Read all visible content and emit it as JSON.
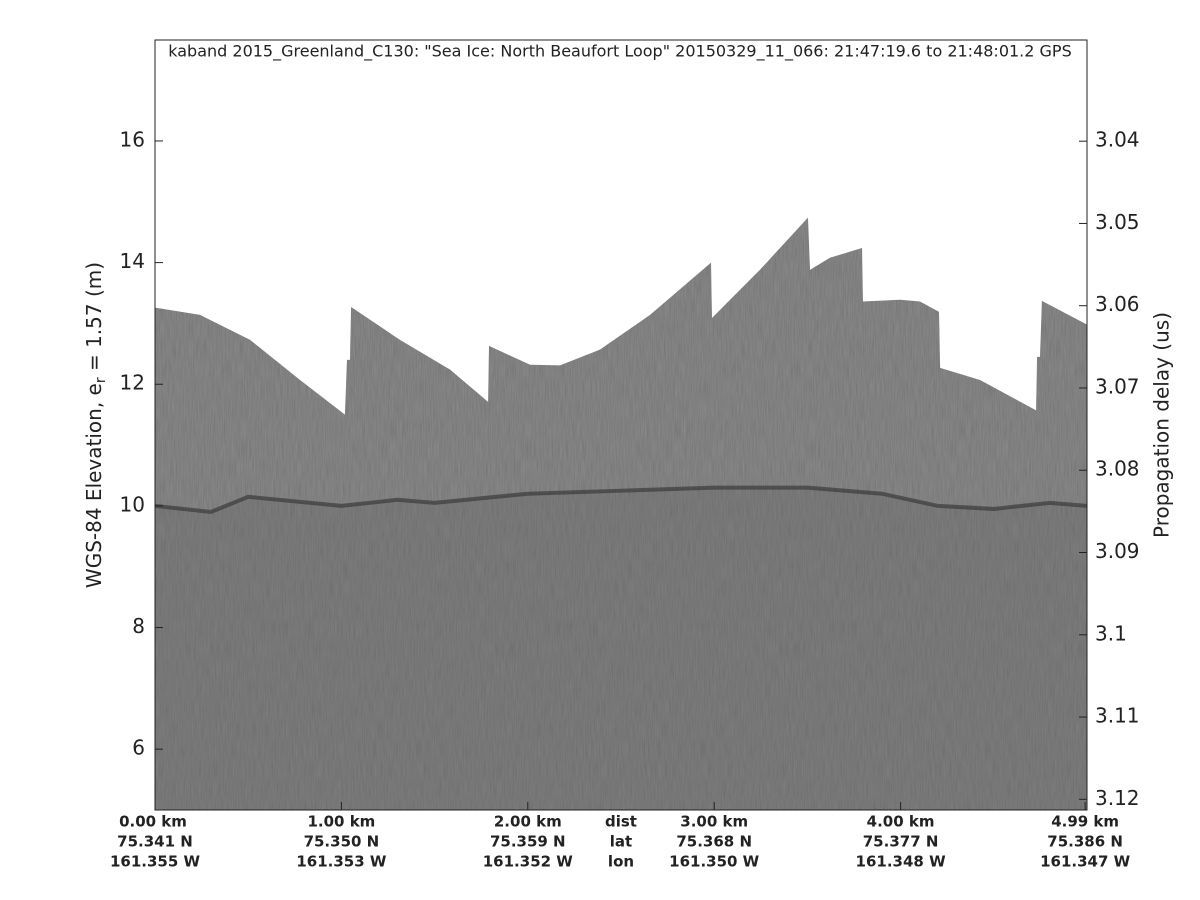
{
  "chart_data": {
    "type": "echogram",
    "title": "kaband 2015_Greenland_C130: \"Sea Ice: North Beaufort Loop\"  20150329_11_066: 21:47:19.6 to 21:48:01.2 GPS",
    "ylabel": [
      "WGS-84 Elevation, e",
      "r",
      " = 1.57 (m)"
    ],
    "y2label": "Propagation delay (us)",
    "xlim": [
      0,
      5.0
    ],
    "xticks": [
      {
        "value": 0,
        "label": "0.00 km"
      },
      {
        "value": 1.0,
        "label": "1.00 km"
      },
      {
        "value": 2.0,
        "label": "2.00 km"
      },
      {
        "value": 3.0,
        "label": "3.00 km"
      },
      {
        "value": 4.0,
        "label": "4.00 km"
      },
      {
        "value": 4.99,
        "label": "4.99 km"
      }
    ],
    "xtick_lat": [
      "75.341 N",
      "75.350 N",
      "75.359 N",
      "75.368 N",
      "75.377 N",
      "75.386 N"
    ],
    "xtick_lon": [
      "161.355 W",
      "161.353 W",
      "161.352 W",
      "161.350 W",
      "161.348 W",
      "161.347 W"
    ],
    "row_labels": [
      "dist",
      "lat",
      "lon"
    ],
    "ylim": [
      5.0,
      17.66
    ],
    "yticks": [
      6,
      8,
      10,
      12,
      14,
      16
    ],
    "y2lim": [
      3.1213,
      3.0277
    ],
    "y2ticks": [
      3.04,
      3.05,
      3.06,
      3.07,
      3.08,
      3.09,
      {
        "value": 3.1,
        "label": "3.1"
      },
      3.11,
      3.12
    ],
    "series": [
      {
        "color": "#8c8c8c",
        "x": [
          0,
          0.241,
          0.51,
          0.778,
          1.019,
          1.03,
          1.046,
          1.052,
          1.314,
          1.583,
          1.787,
          1.792,
          2.012,
          2.173,
          2.387,
          2.656,
          2.983,
          2.988,
          3.245,
          3.503,
          3.514,
          3.621,
          3.793,
          3.798,
          3.997,
          4.104,
          4.206,
          4.212,
          4.426,
          4.727,
          4.732,
          4.748,
          4.758,
          5.0
        ],
        "values": [
          13.26,
          13.14,
          12.73,
          12.07,
          11.5,
          12.4,
          12.4,
          13.27,
          12.73,
          12.24,
          11.71,
          12.63,
          12.32,
          12.31,
          12.57,
          13.14,
          14.0,
          13.09,
          13.88,
          14.74,
          13.88,
          14.08,
          14.24,
          13.36,
          13.39,
          13.36,
          13.19,
          12.27,
          12.07,
          11.57,
          12.45,
          12.45,
          13.37,
          12.98
        ]
      },
      {
        "color": "#3a3a3a",
        "x": [
          0,
          0.3,
          0.5,
          1.0,
          1.3,
          1.5,
          2.0,
          2.5,
          3.0,
          3.5,
          3.9,
          4.2,
          4.5,
          4.8,
          5.0
        ],
        "values": [
          10.0,
          9.9,
          10.15,
          10.0,
          10.1,
          10.05,
          10.2,
          10.25,
          10.3,
          10.3,
          10.2,
          10.0,
          9.95,
          10.05,
          10.0
        ]
      }
    ]
  }
}
